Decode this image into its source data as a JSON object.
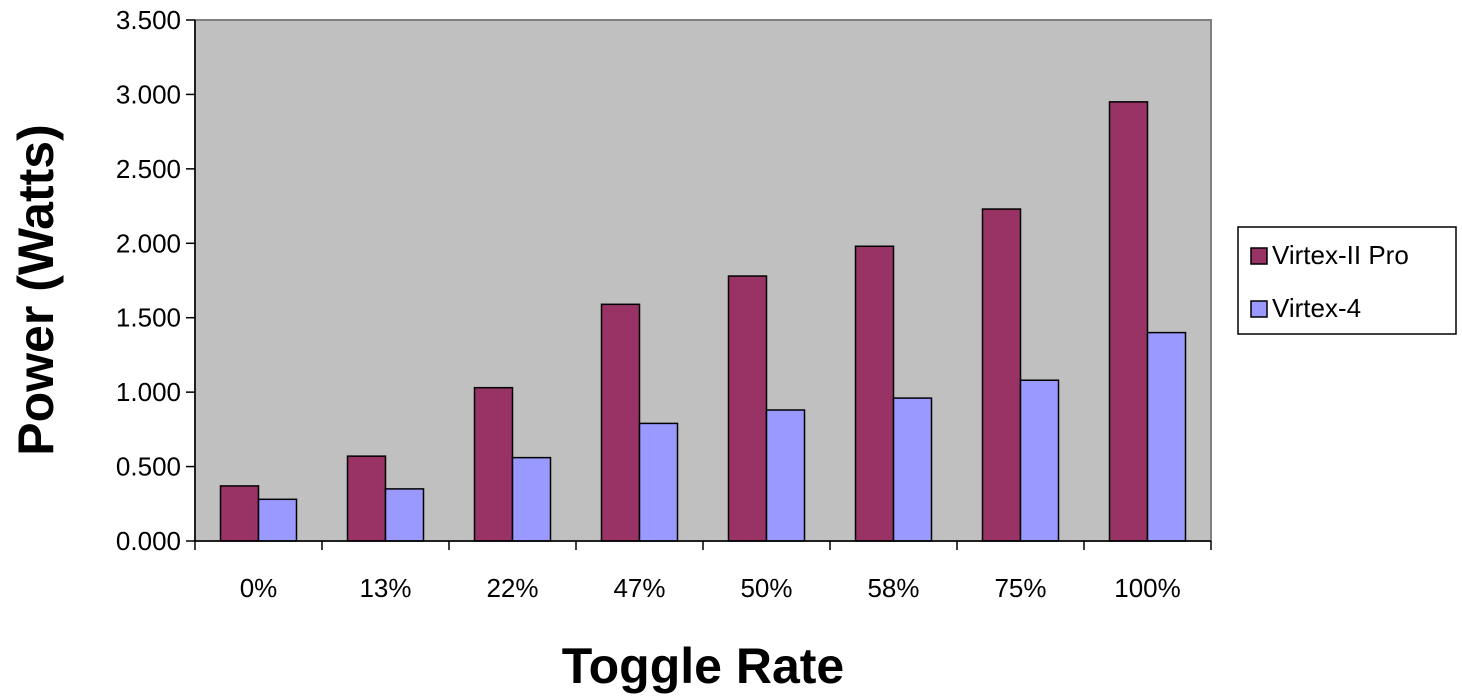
{
  "chart_data": {
    "type": "bar",
    "title": "",
    "xlabel": "Toggle Rate",
    "ylabel": "Power (Watts)",
    "categories": [
      "0%",
      "13%",
      "22%",
      "47%",
      "50%",
      "58%",
      "75%",
      "100%"
    ],
    "series": [
      {
        "name": "Virtex-II Pro",
        "color": "#993366",
        "values": [
          0.37,
          0.57,
          1.03,
          1.59,
          1.78,
          1.98,
          2.23,
          2.95
        ]
      },
      {
        "name": "Virtex-4",
        "color": "#9999ff",
        "values": [
          0.28,
          0.35,
          0.56,
          0.79,
          0.88,
          0.96,
          1.08,
          1.4
        ]
      }
    ],
    "ylim": [
      0,
      3.5
    ],
    "yticks": [
      "0.000",
      "0.500",
      "1.000",
      "1.500",
      "2.000",
      "2.500",
      "3.000",
      "3.500"
    ],
    "ytick_values": [
      0,
      0.5,
      1.0,
      1.5,
      2.0,
      2.5,
      3.0,
      3.5
    ],
    "plot_background": "#c0c0c0",
    "grid": false,
    "legend_position": "right"
  }
}
